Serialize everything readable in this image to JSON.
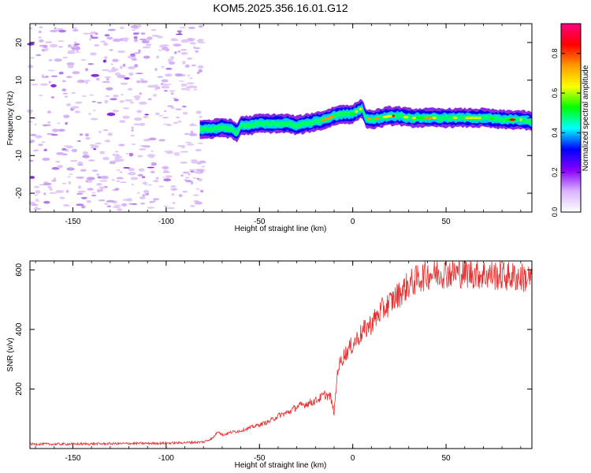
{
  "title": "KOM5.2025.356.16.01.G12",
  "chart_data": [
    {
      "type": "heatmap",
      "name": "spectrogram",
      "xlabel": "Height of straight line (km)",
      "ylabel": "Frequency (Hz)",
      "xlim": [
        -173,
        96
      ],
      "ylim": [
        -25,
        25
      ],
      "xticks": [
        -150,
        -100,
        -50,
        0,
        50
      ],
      "yticks": [
        -20,
        -10,
        0,
        10,
        20
      ],
      "noise_region_x": [
        -173,
        -80
      ],
      "ridge": {
        "x": [
          -82,
          -75,
          -70,
          -65,
          -62,
          -60,
          -55,
          -50,
          -45,
          -40,
          -35,
          -30,
          -25,
          -20,
          -15,
          -10,
          -5,
          0,
          3,
          5,
          7,
          10,
          15,
          20,
          25,
          30,
          40,
          50,
          60,
          70,
          80,
          90,
          96
        ],
        "freq": [
          -3,
          -3,
          -2.5,
          -3,
          -4,
          -2,
          -2,
          -1.5,
          -1.5,
          -1.5,
          -1.5,
          -2,
          -1.5,
          -1,
          -0.5,
          0.5,
          1,
          1,
          2,
          2.5,
          0,
          -0.5,
          0,
          0.5,
          0.5,
          0,
          0,
          0,
          0,
          0,
          -0.5,
          -0.5,
          -1
        ]
      },
      "colorbar": {
        "label": "Normalized spectral amplitude",
        "range": [
          0,
          0.95
        ],
        "ticks": [
          "0.0",
          "0.2",
          "0.4",
          "0.6",
          "0.8"
        ],
        "colors": [
          "#ffffff",
          "#d9b3ff",
          "#8800ff",
          "#0000ff",
          "#00ffff",
          "#00ff00",
          "#ffff00",
          "#ff9900",
          "#ff0000",
          "#ff0080"
        ]
      }
    },
    {
      "type": "line",
      "name": "snr",
      "xlabel": "Height of straight line (km)",
      "ylabel": "SNR (v/v)",
      "xlim": [
        -173,
        96
      ],
      "ylim": [
        0,
        630
      ],
      "xticks": [
        -150,
        -100,
        -50,
        0,
        50
      ],
      "yticks": [
        200,
        400,
        600
      ],
      "series": [
        {
          "name": "SNR",
          "color": "#e83030",
          "x": [
            -173,
            -150,
            -120,
            -100,
            -90,
            -80,
            -75,
            -72,
            -70,
            -65,
            -60,
            -55,
            -50,
            -45,
            -40,
            -35,
            -30,
            -25,
            -20,
            -15,
            -12,
            -10,
            -8,
            -5,
            0,
            5,
            10,
            15,
            20,
            25,
            30,
            35,
            40,
            45,
            50,
            60,
            70,
            80,
            90,
            96
          ],
          "y": [
            15,
            15,
            17,
            18,
            20,
            22,
            35,
            60,
            45,
            55,
            60,
            70,
            80,
            90,
            110,
            120,
            140,
            150,
            160,
            180,
            175,
            120,
            270,
            310,
            350,
            390,
            420,
            460,
            490,
            520,
            550,
            570,
            585,
            590,
            590,
            590,
            585,
            580,
            575,
            570
          ]
        }
      ]
    }
  ]
}
